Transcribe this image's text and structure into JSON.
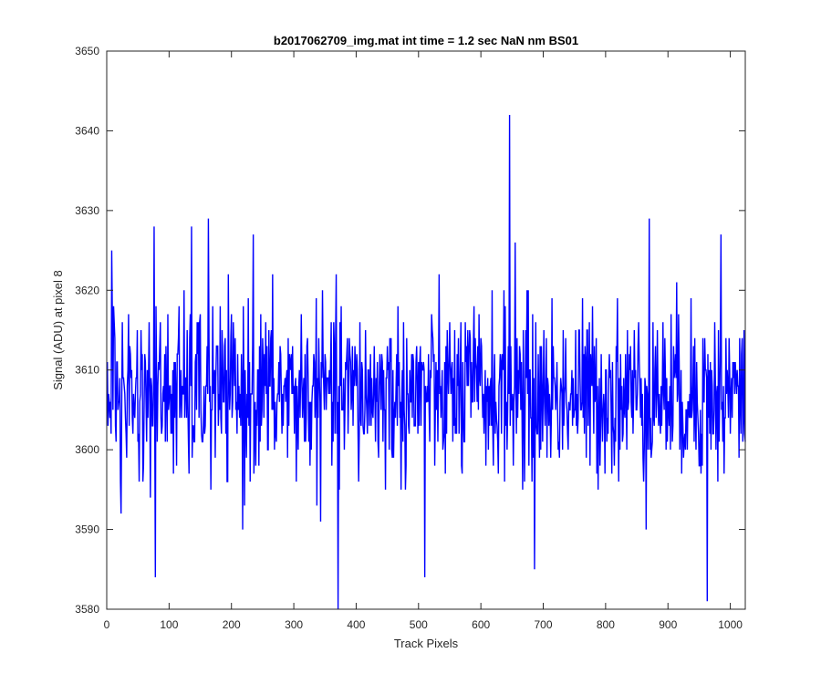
{
  "chart_data": {
    "type": "line",
    "title": "b2017062709_img.mat int time = 1.2 sec  NaN nm BS01",
    "xlabel": "Track Pixels",
    "ylabel": "Signal (ADU) at pixel 8",
    "xlim": [
      0,
      1024
    ],
    "ylim": [
      3580,
      3650
    ],
    "xticks": [
      0,
      100,
      200,
      300,
      400,
      500,
      600,
      700,
      800,
      900,
      1000
    ],
    "yticks": [
      3580,
      3590,
      3600,
      3610,
      3620,
      3630,
      3640,
      3650
    ],
    "grid": false,
    "series": [
      {
        "color": "#0000ff",
        "x_start": 1,
        "x_step": 1,
        "count": 1024,
        "mean": 3607,
        "notable_points": [
          {
            "x": 8,
            "y": 3625
          },
          {
            "x": 76,
            "y": 3628
          },
          {
            "x": 78,
            "y": 3584
          },
          {
            "x": 136,
            "y": 3628
          },
          {
            "x": 163,
            "y": 3629
          },
          {
            "x": 218,
            "y": 3590
          },
          {
            "x": 235,
            "y": 3627
          },
          {
            "x": 371,
            "y": 3580
          },
          {
            "x": 510,
            "y": 3584
          },
          {
            "x": 646,
            "y": 3642
          },
          {
            "x": 655,
            "y": 3626
          },
          {
            "x": 686,
            "y": 3585
          },
          {
            "x": 870,
            "y": 3629
          },
          {
            "x": 963,
            "y": 3581
          },
          {
            "x": 985,
            "y": 3627
          }
        ]
      }
    ]
  }
}
